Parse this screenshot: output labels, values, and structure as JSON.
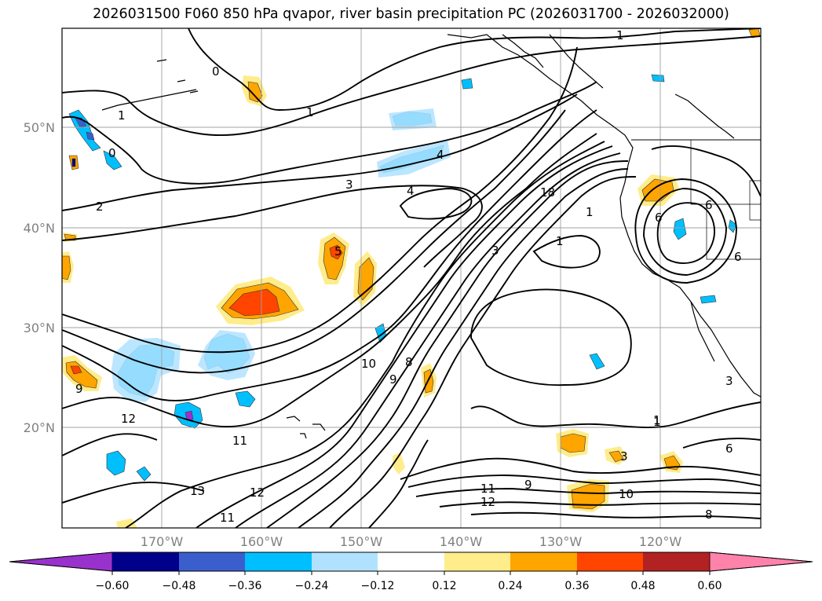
{
  "title": "2026031500 F060 850 hPa qvapor, river basin precipitation PC (2026031700 - 2026032000)",
  "map": {
    "lat_labels": [
      "50°N",
      "40°N",
      "30°N",
      "20°N"
    ],
    "lon_labels": [
      "170°W",
      "160°W",
      "150°W",
      "140°W",
      "130°W",
      "120°W"
    ],
    "contour_labels": [
      "1",
      "0",
      "1",
      "0",
      "1",
      "2",
      "3",
      "4",
      "4",
      "3",
      "5",
      "18",
      "1",
      "1",
      "1",
      "6",
      "6",
      "6",
      "10",
      "9",
      "8",
      "9",
      "12",
      "11",
      "13",
      "12",
      "11",
      "11",
      "12",
      "9",
      "10",
      "8",
      "1",
      "3",
      "6",
      "3"
    ],
    "colors": {
      "grid": "#a0a0a0",
      "contour": "#000000"
    }
  },
  "colorbar": {
    "ticks": [
      "−0.60",
      "−0.48",
      "−0.36",
      "−0.24",
      "−0.12",
      "0.12",
      "0.24",
      "0.36",
      "0.48",
      "0.60"
    ],
    "colors": [
      "#9932cc",
      "#00008b",
      "#3a5fcd",
      "#00bfff",
      "#b0e2ff",
      "#ffffff",
      "#ffec8b",
      "#ffa500",
      "#ff4500",
      "#b22222",
      "#ff82ab"
    ]
  }
}
